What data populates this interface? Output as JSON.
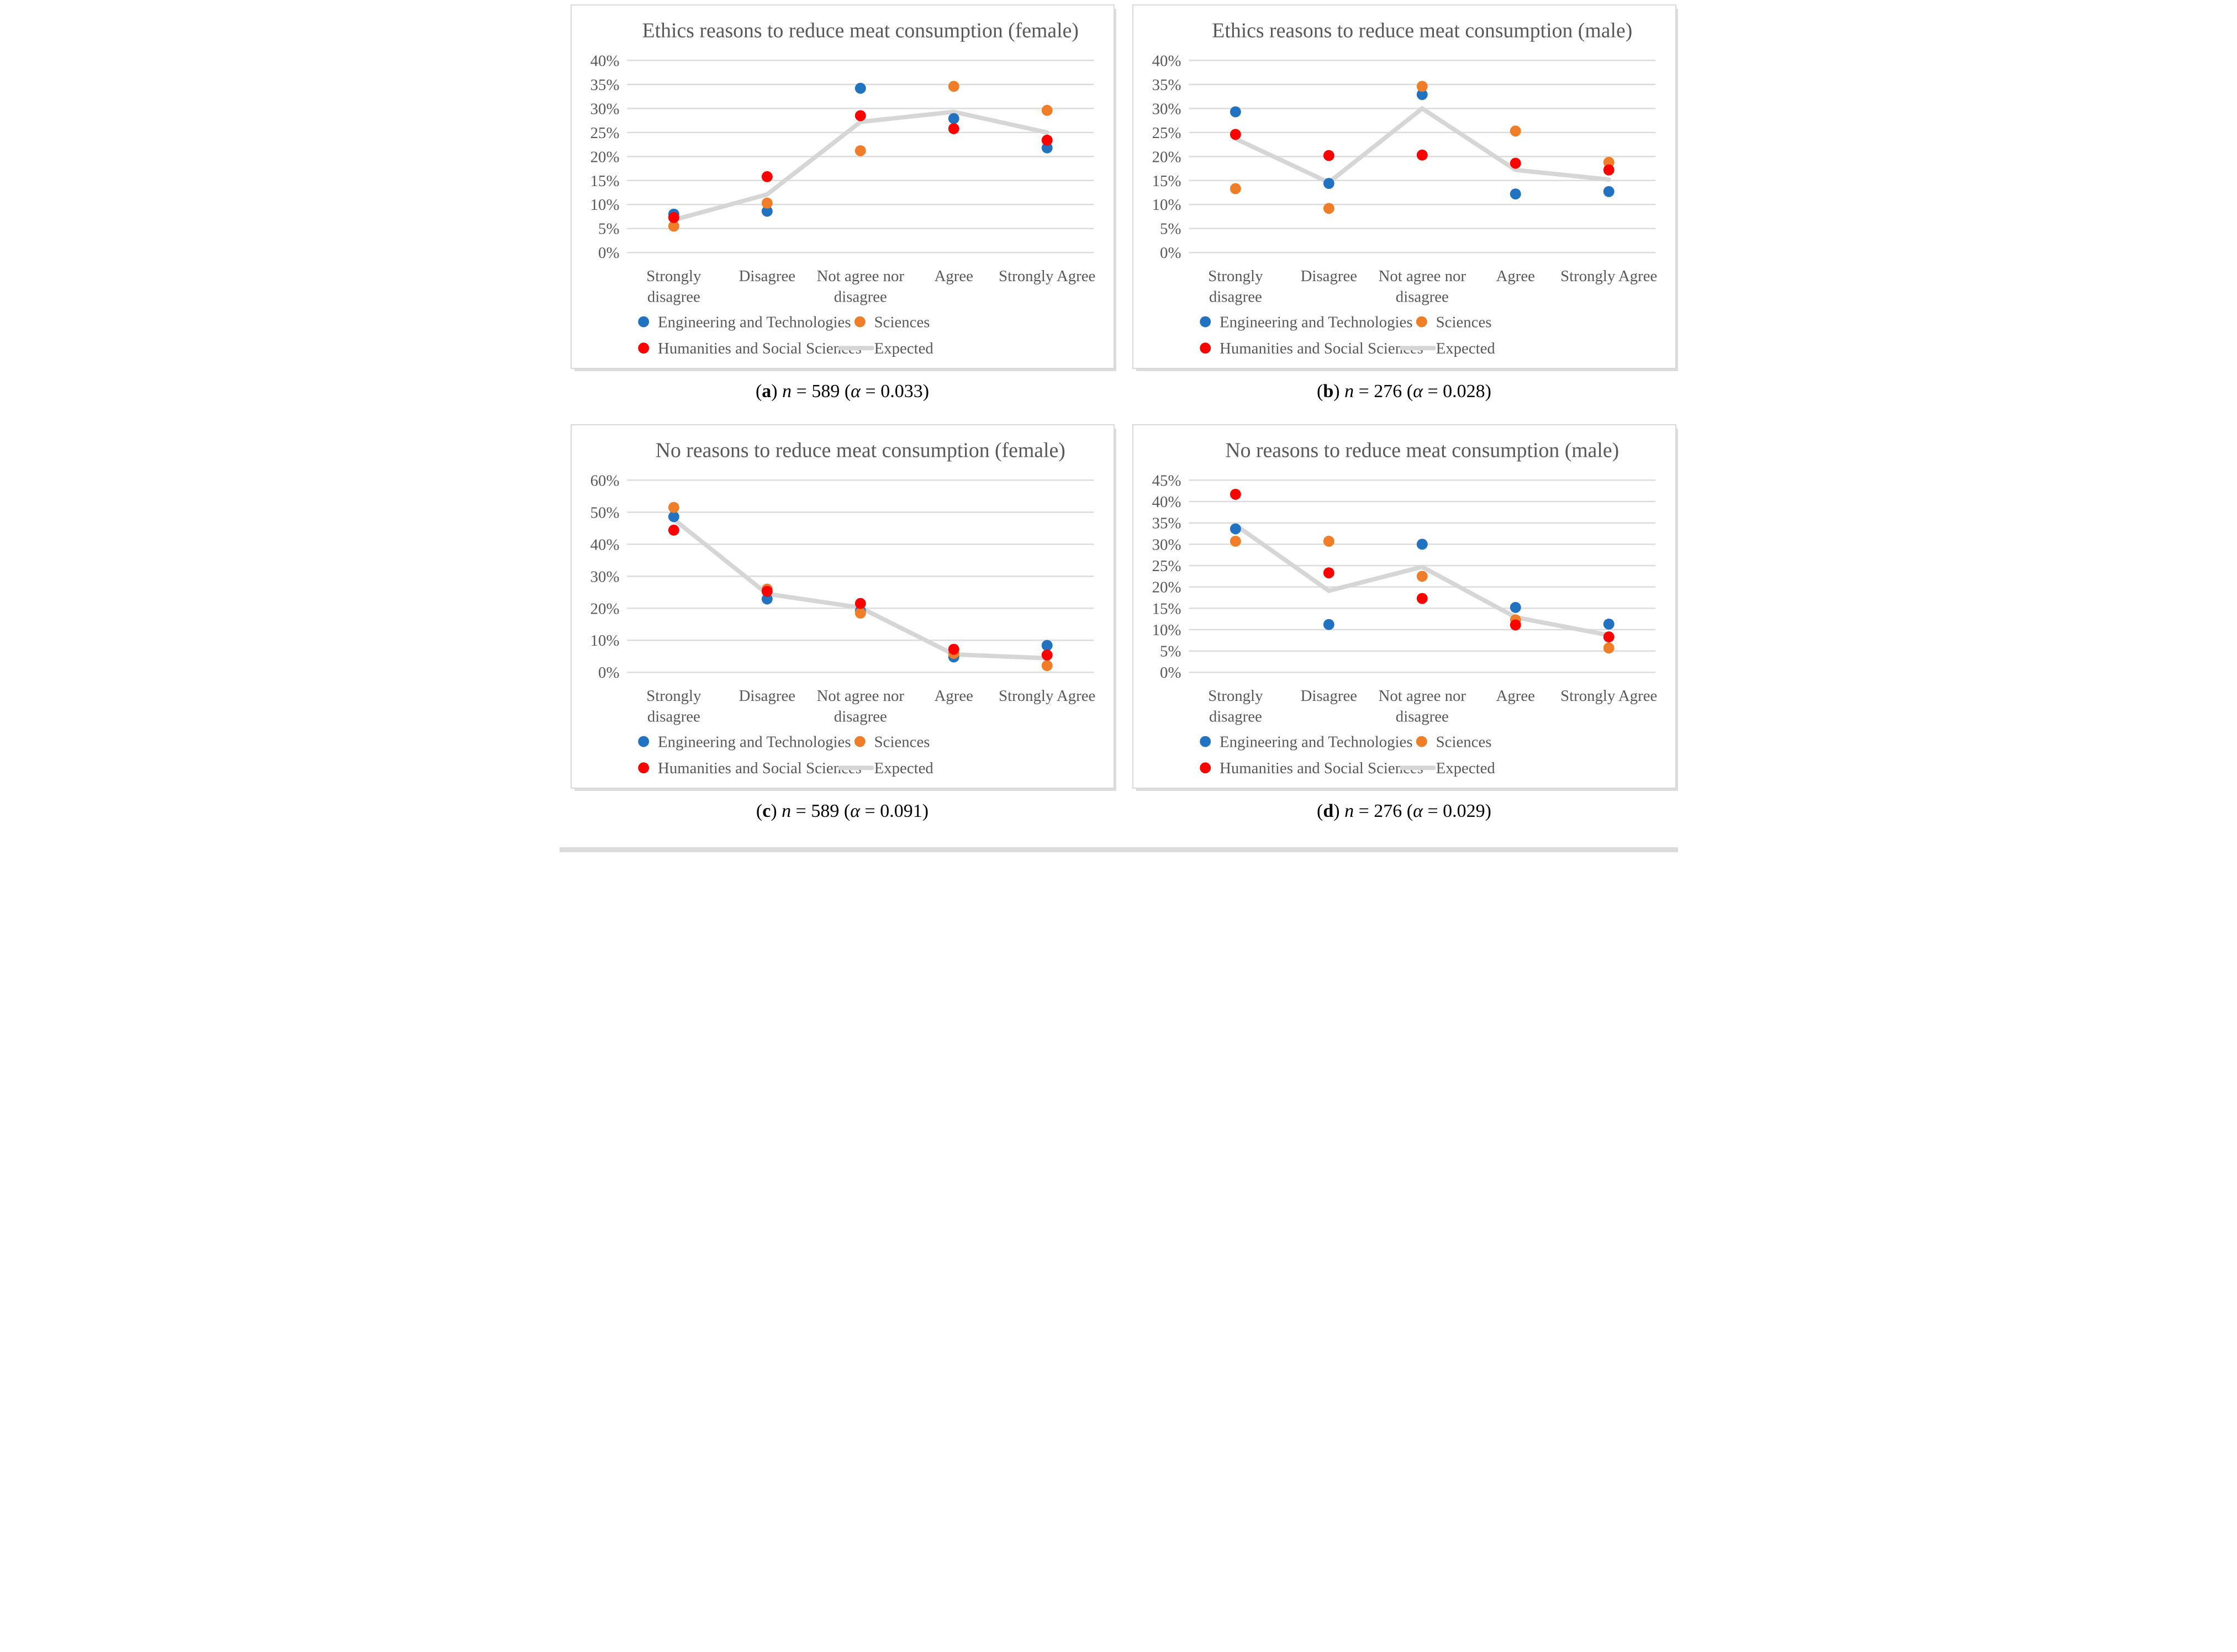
{
  "page": {
    "background": "#ffffff"
  },
  "colors": {
    "engineering": "#2173c2",
    "sciences": "#f07e28",
    "humanities": "#fe0000",
    "expected": "#d6d6d6",
    "gridline": "#dcdcdc",
    "axis_text": "#595959",
    "title_text": "#595959",
    "panel_border": "#d9d9d9",
    "caption_text": "#000000"
  },
  "legend": {
    "items": [
      "Engineering and Technologies",
      "Sciences",
      "Humanities and Social Sciences",
      "Expected"
    ]
  },
  "chart_data": [
    {
      "id": "a",
      "type": "scatter",
      "title": "Ethics reasons to reduce meat consumption (female)",
      "categories": [
        "Strongly disagree",
        "Disagree",
        "Not agree nor disagree",
        "Agree",
        "Strongly Agree"
      ],
      "category_lines": [
        [
          "Strongly",
          "disagree"
        ],
        [
          "Disagree"
        ],
        [
          "Not agree nor",
          "disagree"
        ],
        [
          "Agree"
        ],
        [
          "Strongly Agree"
        ]
      ],
      "ylim": [
        0,
        40
      ],
      "ystep": 5,
      "ytick_format": "percent",
      "grid": true,
      "legend_position": "bottom",
      "series": [
        {
          "name": "Engineering and Technologies",
          "type": "scatter",
          "color_key": "engineering",
          "values": [
            8.0,
            8.6,
            34.2,
            27.9,
            21.8
          ]
        },
        {
          "name": "Sciences",
          "type": "scatter",
          "color_key": "sciences",
          "values": [
            5.5,
            10.3,
            21.2,
            34.6,
            29.6
          ]
        },
        {
          "name": "Humanities and Social Sciences",
          "type": "scatter",
          "color_key": "humanities",
          "values": [
            7.3,
            15.8,
            28.5,
            25.8,
            23.4
          ]
        },
        {
          "name": "Expected",
          "type": "line",
          "color_key": "expected",
          "values": [
            6.8,
            12.1,
            27.2,
            29.3,
            25.0
          ]
        }
      ],
      "caption": {
        "letter": "a",
        "n_label": "n",
        "n_value": "589",
        "alpha_label": "α",
        "alpha_value": "0.033"
      }
    },
    {
      "id": "b",
      "type": "scatter",
      "title": "Ethics reasons to reduce meat consumption (male)",
      "categories": [
        "Strongly disagree",
        "Disagree",
        "Not agree nor disagree",
        "Agree",
        "Strongly Agree"
      ],
      "category_lines": [
        [
          "Strongly",
          "disagree"
        ],
        [
          "Disagree"
        ],
        [
          "Not agree nor",
          "disagree"
        ],
        [
          "Agree"
        ],
        [
          "Strongly Agree"
        ]
      ],
      "ylim": [
        0,
        40
      ],
      "ystep": 5,
      "ytick_format": "percent",
      "grid": true,
      "legend_position": "bottom",
      "series": [
        {
          "name": "Engineering and Technologies",
          "type": "scatter",
          "color_key": "engineering",
          "values": [
            29.3,
            14.4,
            32.9,
            12.2,
            12.7
          ]
        },
        {
          "name": "Sciences",
          "type": "scatter",
          "color_key": "sciences",
          "values": [
            13.3,
            9.2,
            34.6,
            25.3,
            18.8
          ]
        },
        {
          "name": "Humanities and Social Sciences",
          "type": "scatter",
          "color_key": "humanities",
          "values": [
            24.6,
            20.2,
            20.3,
            18.6,
            17.2
          ]
        },
        {
          "name": "Expected",
          "type": "line",
          "color_key": "expected",
          "values": [
            23.7,
            14.6,
            30.0,
            17.2,
            15.2
          ]
        }
      ],
      "caption": {
        "letter": "b",
        "n_label": "n",
        "n_value": "276",
        "alpha_label": "α",
        "alpha_value": "0.028"
      }
    },
    {
      "id": "c",
      "type": "scatter",
      "title": "No reasons to reduce meat consumption (female)",
      "categories": [
        "Strongly disagree",
        "Disagree",
        "Not agree nor disagree",
        "Agree",
        "Strongly Agree"
      ],
      "category_lines": [
        [
          "Strongly",
          "disagree"
        ],
        [
          "Disagree"
        ],
        [
          "Not agree nor",
          "disagree"
        ],
        [
          "Agree"
        ],
        [
          "Strongly Agree"
        ]
      ],
      "ylim": [
        0,
        60
      ],
      "ystep": 10,
      "ytick_format": "percent",
      "grid": true,
      "legend_position": "bottom",
      "series": [
        {
          "name": "Engineering and Technologies",
          "type": "scatter",
          "color_key": "engineering",
          "values": [
            48.6,
            22.9,
            19.2,
            4.8,
            8.4
          ]
        },
        {
          "name": "Sciences",
          "type": "scatter",
          "color_key": "sciences",
          "values": [
            51.5,
            26.0,
            18.5,
            5.9,
            2.1
          ]
        },
        {
          "name": "Humanities and Social Sciences",
          "type": "scatter",
          "color_key": "humanities",
          "values": [
            44.4,
            25.3,
            21.5,
            7.2,
            5.4
          ]
        },
        {
          "name": "Expected",
          "type": "line",
          "color_key": "expected",
          "values": [
            47.8,
            24.5,
            20.2,
            5.6,
            4.4
          ]
        }
      ],
      "caption": {
        "letter": "c",
        "n_label": "n",
        "n_value": "589",
        "alpha_label": "α",
        "alpha_value": "0.091"
      }
    },
    {
      "id": "d",
      "type": "scatter",
      "title": "No reasons to reduce meat consumption (male)",
      "categories": [
        "Strongly disagree",
        "Disagree",
        "Not agree nor disagree",
        "Agree",
        "Strongly Agree"
      ],
      "category_lines": [
        [
          "Strongly",
          "disagree"
        ],
        [
          "Disagree"
        ],
        [
          "Not agree nor",
          "disagree"
        ],
        [
          "Agree"
        ],
        [
          "Strongly Agree"
        ]
      ],
      "ylim": [
        0,
        45
      ],
      "ystep": 5,
      "ytick_format": "percent",
      "grid": true,
      "legend_position": "bottom",
      "series": [
        {
          "name": "Engineering and Technologies",
          "type": "scatter",
          "color_key": "engineering",
          "values": [
            33.6,
            11.2,
            30.0,
            15.2,
            11.3
          ]
        },
        {
          "name": "Sciences",
          "type": "scatter",
          "color_key": "sciences",
          "values": [
            30.7,
            30.7,
            22.5,
            12.3,
            5.7
          ]
        },
        {
          "name": "Humanities and Social Sciences",
          "type": "scatter",
          "color_key": "humanities",
          "values": [
            41.7,
            23.3,
            17.3,
            11.1,
            8.3
          ]
        },
        {
          "name": "Expected",
          "type": "line",
          "color_key": "expected",
          "values": [
            34.5,
            19.1,
            24.7,
            12.9,
            8.7
          ]
        }
      ],
      "caption": {
        "letter": "d",
        "n_label": "n",
        "n_value": "276",
        "alpha_label": "α",
        "alpha_value": "0.029"
      }
    }
  ]
}
